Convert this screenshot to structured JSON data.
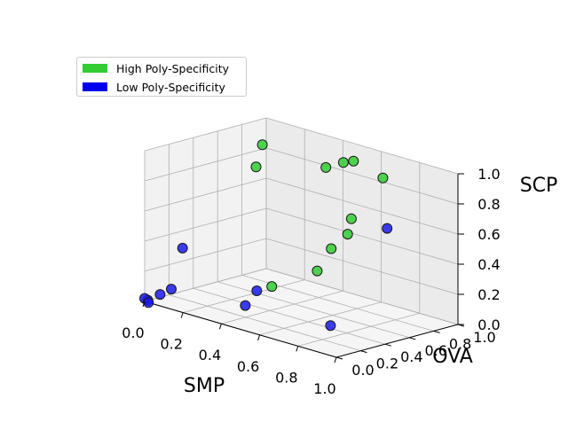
{
  "chart_data": {
    "type": "scatter3d",
    "title": "",
    "xlabel": "SMP",
    "ylabel": "OVA",
    "zlabel": "SCP",
    "xlim": [
      0,
      1
    ],
    "ylim": [
      0,
      1
    ],
    "zlim": [
      0,
      1
    ],
    "x_ticks": [
      "0.0",
      "0.2",
      "0.4",
      "0.6",
      "0.8",
      "1.0"
    ],
    "y_ticks": [
      "0.0",
      "0.2",
      "0.4",
      "0.6",
      "0.8",
      "1.0"
    ],
    "z_ticks": [
      "0.0",
      "0.2",
      "0.4",
      "0.6",
      "0.8",
      "1.0"
    ],
    "grid": true,
    "legend_position": "top-left",
    "series": [
      {
        "name": "High Poly-Specificity",
        "color": "#33cc33",
        "points": [
          {
            "x": 0.55,
            "y": 0.85,
            "z": 0.95
          },
          {
            "x": 0.64,
            "y": 0.95,
            "z": 0.85
          },
          {
            "x": 0.58,
            "y": 0.72,
            "z": 0.98
          },
          {
            "x": 0.52,
            "y": 0.88,
            "z": 0.55
          },
          {
            "x": 0.4,
            "y": 0.86,
            "z": 0.85
          },
          {
            "x": 0.64,
            "y": 0.66,
            "z": 0.54
          },
          {
            "x": 0.58,
            "y": 0.62,
            "z": 0.43
          },
          {
            "x": 0.01,
            "y": 0.9,
            "z": 0.7
          },
          {
            "x": 0.17,
            "y": 0.7,
            "z": 0.95
          },
          {
            "x": 0.64,
            "y": 0.41,
            "z": 0.35
          },
          {
            "x": 0.46,
            "y": 0.32,
            "z": 0.2
          }
        ]
      },
      {
        "name": "Low Poly-Specificity",
        "color": "#1a1aee",
        "points": [
          {
            "x": 0.77,
            "y": 0.78,
            "z": 0.6
          },
          {
            "x": 0.35,
            "y": 0.37,
            "z": 0.12
          },
          {
            "x": 0.36,
            "y": 0.26,
            "z": 0.05
          },
          {
            "x": 0.83,
            "y": 0.22,
            "z": 0.1
          },
          {
            "x": 0.02,
            "y": 0.28,
            "z": 0.3
          },
          {
            "x": 0.05,
            "y": 0.14,
            "z": 0.07
          },
          {
            "x": 0.03,
            "y": 0.08,
            "z": 0.04
          },
          {
            "x": 0.0,
            "y": 0.0,
            "z": 0.02
          },
          {
            "x": 0.01,
            "y": 0.01,
            "z": 0.01
          },
          {
            "x": 0.02,
            "y": 0.0,
            "z": 0.0
          }
        ]
      }
    ]
  }
}
